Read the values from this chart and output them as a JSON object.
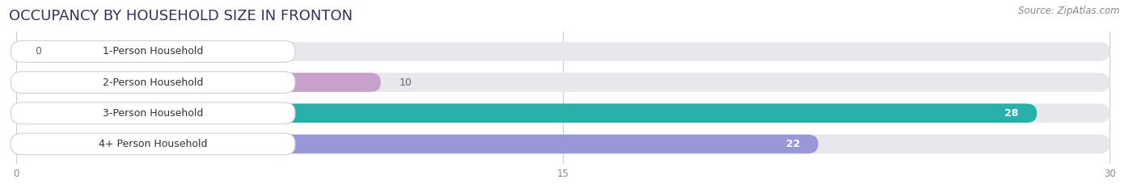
{
  "title": "OCCUPANCY BY HOUSEHOLD SIZE IN FRONTON",
  "source": "Source: ZipAtlas.com",
  "categories": [
    "1-Person Household",
    "2-Person Household",
    "3-Person Household",
    "4+ Person Household"
  ],
  "values": [
    0,
    10,
    28,
    22
  ],
  "bar_colors": [
    "#a8c4e0",
    "#c8a0cc",
    "#2ab0aa",
    "#9898d8"
  ],
  "value_text_colors": [
    "#666666",
    "#666666",
    "#ffffff",
    "#ffffff"
  ],
  "xlim": [
    0,
    30
  ],
  "xticks": [
    0,
    15,
    30
  ],
  "background_color": "#ffffff",
  "bar_background_color": "#e8e8ec",
  "title_fontsize": 13,
  "label_fontsize": 9,
  "value_fontsize": 9,
  "source_fontsize": 8.5
}
